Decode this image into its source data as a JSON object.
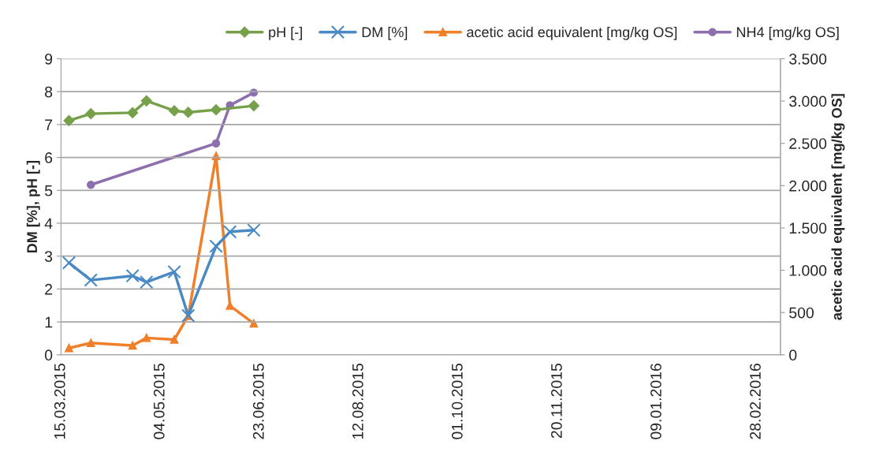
{
  "chart_data": {
    "type": "line",
    "ylabel": "DM [%], pH [-]",
    "y2label": "acetic acid equivalent [mg/kg OS]",
    "x": [
      "2015-03-19",
      "2015-03-30",
      "2015-04-20",
      "2015-04-27",
      "2015-05-11",
      "2015-05-18",
      "2015-06-01",
      "2015-06-08",
      "2015-06-20"
    ],
    "series": [
      {
        "name": "pH [-]",
        "color": "#77a04b",
        "marker": "diamond",
        "values": [
          7.12,
          7.33,
          7.36,
          7.72,
          7.42,
          7.37,
          7.45,
          null,
          7.57
        ]
      },
      {
        "name": "DM [%]",
        "color": "#4a8ac4",
        "marker": "cross",
        "values": [
          2.8,
          2.27,
          2.4,
          2.21,
          2.52,
          1.19,
          3.3,
          3.74,
          3.79
        ]
      },
      {
        "name": "acetic acid equivalent [mg/kg OS]",
        "color": "#f07f2a",
        "marker": "triangle",
        "axis": "y2",
        "values": [
          80,
          140,
          110,
          200,
          180,
          460,
          2350,
          580,
          370
        ]
      },
      {
        "name": "NH4 [mg/kg OS]",
        "color": "#8e6fae",
        "marker": "circle",
        "axis": "y2",
        "values": [
          null,
          2010,
          null,
          null,
          null,
          null,
          2500,
          2950,
          3100
        ]
      }
    ],
    "xlim": [
      "2015-03-15",
      "2016-03-11"
    ],
    "xticks": [
      {
        "value": "2015-03-15",
        "label": "15.03.2015"
      },
      {
        "value": "2015-05-04",
        "label": "04.05.2015"
      },
      {
        "value": "2015-06-23",
        "label": "23.06.2015"
      },
      {
        "value": "2015-08-12",
        "label": "12.08.2015"
      },
      {
        "value": "2015-10-01",
        "label": "01.10.2015"
      },
      {
        "value": "2015-11-20",
        "label": "20.11.2015"
      },
      {
        "value": "2016-01-09",
        "label": "09.01.2016"
      },
      {
        "value": "2016-02-28",
        "label": "28.02.2016"
      }
    ],
    "ylim": [
      0,
      9
    ],
    "yticks": [
      0,
      1,
      2,
      3,
      4,
      5,
      6,
      7,
      8,
      9
    ],
    "y2lim": [
      0,
      3500
    ],
    "y2ticks": [
      0,
      500,
      {
        "value": 1000,
        "label": "1.000"
      },
      {
        "value": 1500,
        "label": "1.500"
      },
      {
        "value": 2000,
        "label": "2.000"
      },
      {
        "value": 2500,
        "label": "2.500"
      },
      {
        "value": 3000,
        "label": "3.000"
      },
      {
        "value": 3500,
        "label": "3.500"
      }
    ],
    "grid": "y",
    "legend": "top right",
    "line_style": "solid"
  }
}
